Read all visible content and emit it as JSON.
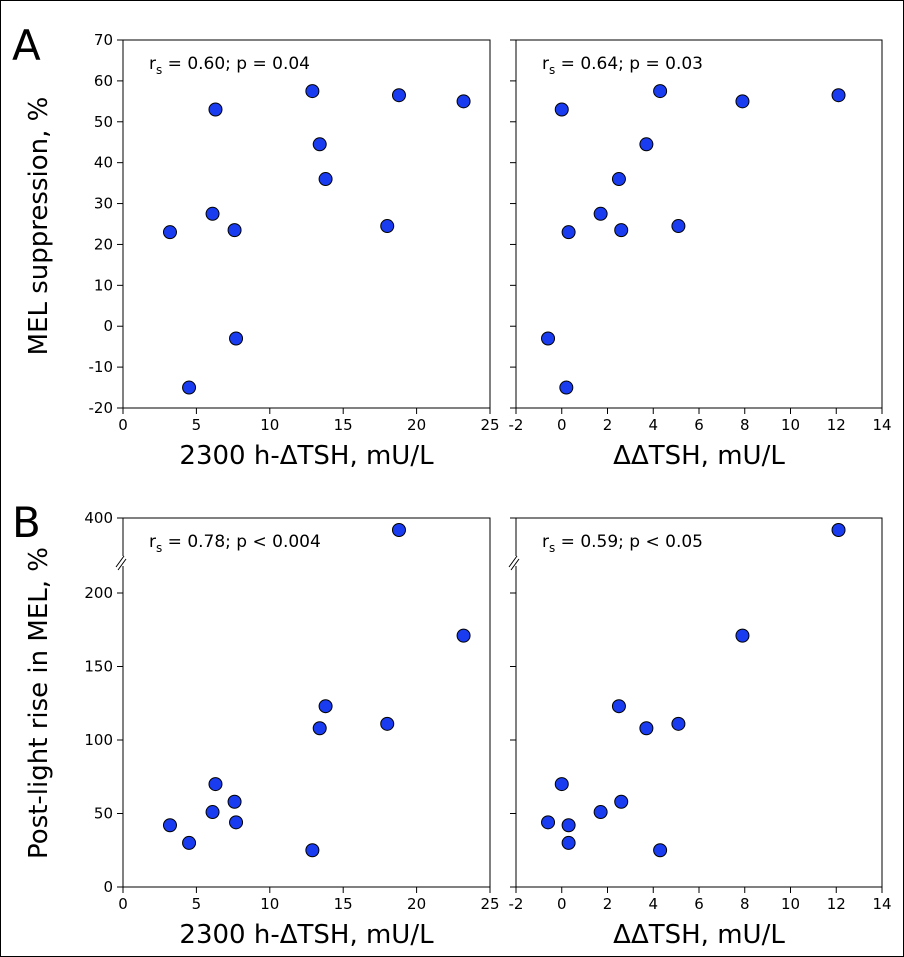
{
  "figure": {
    "panel_letters": [
      "A",
      "B"
    ],
    "ylabel_A": "MEL suppression, %",
    "ylabel_B": "Post-light rise in MEL, %"
  },
  "colors": {
    "marker_fill": "#1a3cf0",
    "marker_stroke": "#000000",
    "axis": "#000000"
  },
  "chart_data": [
    {
      "id": "A-left",
      "type": "scatter",
      "annotation": {
        "prefix": "r",
        "sub": "s",
        "text": " = 0.60; p = 0.04"
      },
      "xlabel": "2300 h-ΔTSH, mU/L",
      "xlim": [
        0,
        25
      ],
      "ylim": [
        -20,
        70
      ],
      "xticks": [
        0,
        5,
        10,
        15,
        20,
        25
      ],
      "xtick_labels": [
        "0",
        "5",
        "10",
        "15",
        "20",
        "25"
      ],
      "yticks": [
        -20,
        -10,
        0,
        10,
        20,
        30,
        40,
        50,
        60,
        70
      ],
      "ytick_labels": [
        "-20",
        "-10",
        "0",
        "10",
        "20",
        "30",
        "40",
        "50",
        "60",
        "70"
      ],
      "points": [
        {
          "x": 3.2,
          "y": 23
        },
        {
          "x": 4.5,
          "y": -15
        },
        {
          "x": 6.1,
          "y": 27.5
        },
        {
          "x": 6.3,
          "y": 53
        },
        {
          "x": 7.6,
          "y": 23.5
        },
        {
          "x": 7.7,
          "y": -3
        },
        {
          "x": 12.9,
          "y": 57.5
        },
        {
          "x": 13.4,
          "y": 44.5
        },
        {
          "x": 13.8,
          "y": 36
        },
        {
          "x": 18.0,
          "y": 24.5
        },
        {
          "x": 18.8,
          "y": 56.5
        },
        {
          "x": 23.2,
          "y": 55
        }
      ]
    },
    {
      "id": "A-right",
      "type": "scatter",
      "annotation": {
        "prefix": "r",
        "sub": "s",
        "text": " = 0.64; p = 0.03"
      },
      "xlabel": "ΔΔTSH, mU/L",
      "xlim": [
        -2,
        14
      ],
      "ylim": [
        -20,
        70
      ],
      "xticks": [
        -2,
        0,
        2,
        4,
        6,
        8,
        10,
        12,
        14
      ],
      "xtick_labels": [
        "-2",
        "0",
        "2",
        "4",
        "6",
        "8",
        "10",
        "12",
        "14"
      ],
      "yticks": [
        -20,
        -10,
        0,
        10,
        20,
        30,
        40,
        50,
        60,
        70
      ],
      "points": [
        {
          "x": 0.0,
          "y": 53
        },
        {
          "x": 0.3,
          "y": 23
        },
        {
          "x": -0.6,
          "y": -3
        },
        {
          "x": 0.2,
          "y": -15
        },
        {
          "x": 1.7,
          "y": 27.5
        },
        {
          "x": 2.5,
          "y": 36
        },
        {
          "x": 2.6,
          "y": 23.5
        },
        {
          "x": 3.7,
          "y": 44.5
        },
        {
          "x": 4.3,
          "y": 57.5
        },
        {
          "x": 5.1,
          "y": 24.5
        },
        {
          "x": 7.9,
          "y": 55
        },
        {
          "x": 12.1,
          "y": 56.5
        }
      ]
    },
    {
      "id": "B-left",
      "type": "scatter",
      "annotation": {
        "prefix": "r",
        "sub": "s",
        "text": " = 0.78; p < 0.004"
      },
      "xlabel": "2300 h-ΔTSH, mU/L",
      "xlim": [
        0,
        25
      ],
      "ylim": [
        0,
        240
      ],
      "y_break": true,
      "xticks": [
        0,
        5,
        10,
        15,
        20,
        25
      ],
      "xtick_labels": [
        "0",
        "5",
        "10",
        "15",
        "20",
        "25"
      ],
      "yticks": [
        0,
        50,
        100,
        150,
        200
      ],
      "ytick_labels": [
        "0",
        "50",
        "100",
        "150",
        "200"
      ],
      "top_tick_label": "400",
      "points": [
        {
          "x": 3.2,
          "y": 42
        },
        {
          "x": 4.5,
          "y": 30
        },
        {
          "x": 6.1,
          "y": 51
        },
        {
          "x": 6.3,
          "y": 70
        },
        {
          "x": 7.6,
          "y": 58
        },
        {
          "x": 7.7,
          "y": 44
        },
        {
          "x": 12.9,
          "y": 25
        },
        {
          "x": 13.4,
          "y": 108
        },
        {
          "x": 13.8,
          "y": 123
        },
        {
          "x": 18.0,
          "y": 111
        },
        {
          "x": 18.8,
          "y": 400
        },
        {
          "x": 23.2,
          "y": 171
        }
      ]
    },
    {
      "id": "B-right",
      "type": "scatter",
      "annotation": {
        "prefix": "r",
        "sub": "s",
        "text": " = 0.59; p < 0.05"
      },
      "xlabel": "ΔΔTSH, mU/L",
      "xlim": [
        -2,
        14
      ],
      "ylim": [
        0,
        240
      ],
      "y_break": true,
      "xticks": [
        -2,
        0,
        2,
        4,
        6,
        8,
        10,
        12,
        14
      ],
      "xtick_labels": [
        "-2",
        "0",
        "2",
        "4",
        "6",
        "8",
        "10",
        "12",
        "14"
      ],
      "yticks": [
        0,
        50,
        100,
        150,
        200
      ],
      "points": [
        {
          "x": -0.6,
          "y": 44
        },
        {
          "x": 0.0,
          "y": 70
        },
        {
          "x": 0.3,
          "y": 42
        },
        {
          "x": 0.3,
          "y": 30
        },
        {
          "x": 1.7,
          "y": 51
        },
        {
          "x": 2.5,
          "y": 123
        },
        {
          "x": 2.6,
          "y": 58
        },
        {
          "x": 3.7,
          "y": 108
        },
        {
          "x": 4.3,
          "y": 25
        },
        {
          "x": 5.1,
          "y": 111
        },
        {
          "x": 7.9,
          "y": 171
        },
        {
          "x": 12.1,
          "y": 400
        }
      ]
    }
  ]
}
